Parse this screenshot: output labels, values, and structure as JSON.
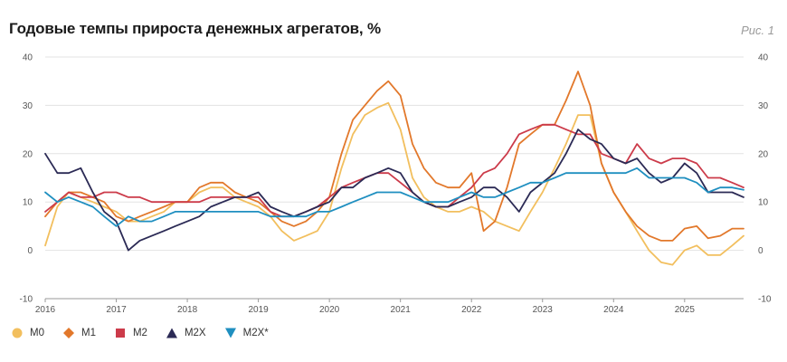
{
  "title": "Годовые темпы прироста денежных агрегатов, %",
  "figure_label": "Рис. 1",
  "legend": [
    {
      "name": "M0",
      "color": "#f2bf5e",
      "marker": "circle"
    },
    {
      "name": "M1",
      "color": "#e2782b",
      "marker": "diamond"
    },
    {
      "name": "M2",
      "color": "#cc3b4a",
      "marker": "square"
    },
    {
      "name": "M2X",
      "color": "#2b2a55",
      "marker": "triangle-up"
    },
    {
      "name": "M2X*",
      "color": "#1f8fc0",
      "marker": "triangle-down"
    }
  ],
  "chart_data": {
    "type": "line",
    "title": "Годовые темпы прироста денежных агрегатов, %",
    "xlabel": "",
    "ylabel": "",
    "xlim": [
      2016,
      2025.83
    ],
    "ylim": [
      -10,
      40
    ],
    "x_ticks": [
      "2016",
      "2017",
      "2018",
      "2019",
      "2020",
      "2021",
      "2022",
      "2023",
      "2024",
      "2025"
    ],
    "y_ticks": [
      -10,
      0,
      10,
      20,
      30,
      40
    ],
    "grid": "horizontal",
    "legend_position": "bottom-left",
    "x": [
      2016.0,
      2016.17,
      2016.33,
      2016.5,
      2016.67,
      2016.83,
      2017.0,
      2017.17,
      2017.33,
      2017.5,
      2017.67,
      2017.83,
      2018.0,
      2018.17,
      2018.33,
      2018.5,
      2018.67,
      2018.83,
      2019.0,
      2019.17,
      2019.33,
      2019.5,
      2019.67,
      2019.83,
      2020.0,
      2020.17,
      2020.33,
      2020.5,
      2020.67,
      2020.83,
      2021.0,
      2021.17,
      2021.33,
      2021.5,
      2021.67,
      2021.83,
      2022.0,
      2022.17,
      2022.33,
      2022.5,
      2022.67,
      2022.83,
      2023.0,
      2023.17,
      2023.33,
      2023.5,
      2023.67,
      2023.83,
      2024.0,
      2024.17,
      2024.33,
      2024.5,
      2024.67,
      2024.83,
      2025.0,
      2025.17,
      2025.33,
      2025.5,
      2025.67,
      2025.83
    ],
    "series": [
      {
        "name": "M0",
        "values": [
          1,
          9,
          12,
          11,
          10,
          9,
          8,
          6,
          6,
          7,
          8,
          10,
          10,
          12,
          13,
          13,
          11,
          10,
          9,
          7,
          4,
          2,
          3,
          4,
          8,
          17,
          24,
          28,
          29.5,
          30.5,
          25,
          15,
          11,
          9,
          8,
          8,
          9,
          8,
          6,
          5,
          4,
          8,
          12,
          17,
          22,
          28,
          28,
          18,
          12,
          8,
          4,
          0,
          -2.5,
          -3,
          0,
          1,
          -1,
          -1,
          1,
          3
        ]
      },
      {
        "name": "M1",
        "values": [
          7,
          10,
          12,
          12,
          11,
          10,
          7,
          6,
          7,
          8,
          9,
          10,
          10,
          13,
          14,
          14,
          12,
          11,
          10,
          8,
          6,
          5,
          6,
          8,
          11,
          20,
          27,
          30,
          33,
          35,
          32,
          22,
          17,
          14,
          13,
          13,
          16,
          4,
          6,
          13,
          22,
          24,
          26,
          26,
          31,
          37,
          30,
          18,
          12,
          8,
          5,
          3,
          2,
          2,
          4.5,
          5,
          2.5,
          3,
          4.5,
          4.5
        ]
      },
      {
        "name": "M2",
        "values": [
          8,
          10,
          12,
          11,
          11,
          12,
          12,
          11,
          11,
          10,
          10,
          10,
          10,
          10,
          11,
          11,
          11,
          11,
          11,
          8,
          7,
          7,
          8,
          9,
          11,
          13,
          14,
          15,
          16,
          16,
          14,
          12,
          10,
          9,
          9,
          11,
          13,
          16,
          17,
          20,
          24,
          25,
          26,
          26,
          25,
          24,
          24,
          20,
          19,
          18,
          22,
          19,
          18,
          19,
          19,
          18,
          15,
          15,
          14,
          13
        ]
      },
      {
        "name": "M2X",
        "values": [
          20,
          16,
          16,
          17,
          12,
          8,
          6,
          0,
          2,
          3,
          4,
          5,
          6,
          7,
          9,
          10,
          11,
          11,
          12,
          9,
          8,
          7,
          8,
          9,
          10,
          13,
          13,
          15,
          16,
          17,
          16,
          12,
          10,
          9,
          9,
          10,
          11,
          13,
          13,
          11,
          8,
          12,
          14,
          16,
          20,
          25,
          23,
          22,
          19,
          18,
          19,
          16,
          14,
          15,
          18,
          16,
          12,
          12,
          12,
          11
        ]
      },
      {
        "name": "M2X*",
        "values": [
          12,
          10,
          11,
          10,
          9,
          7,
          5,
          7,
          6,
          6,
          7,
          8,
          8,
          8,
          8,
          8,
          8,
          8,
          8,
          7,
          7,
          7,
          7,
          8,
          8,
          9,
          10,
          11,
          12,
          12,
          12,
          11,
          10,
          10,
          10,
          11,
          12,
          11,
          11,
          12,
          13,
          14,
          14,
          15,
          16,
          16,
          16,
          16,
          16,
          16,
          17,
          15,
          15,
          15,
          15,
          14,
          12,
          13,
          13,
          12.5
        ]
      }
    ]
  }
}
